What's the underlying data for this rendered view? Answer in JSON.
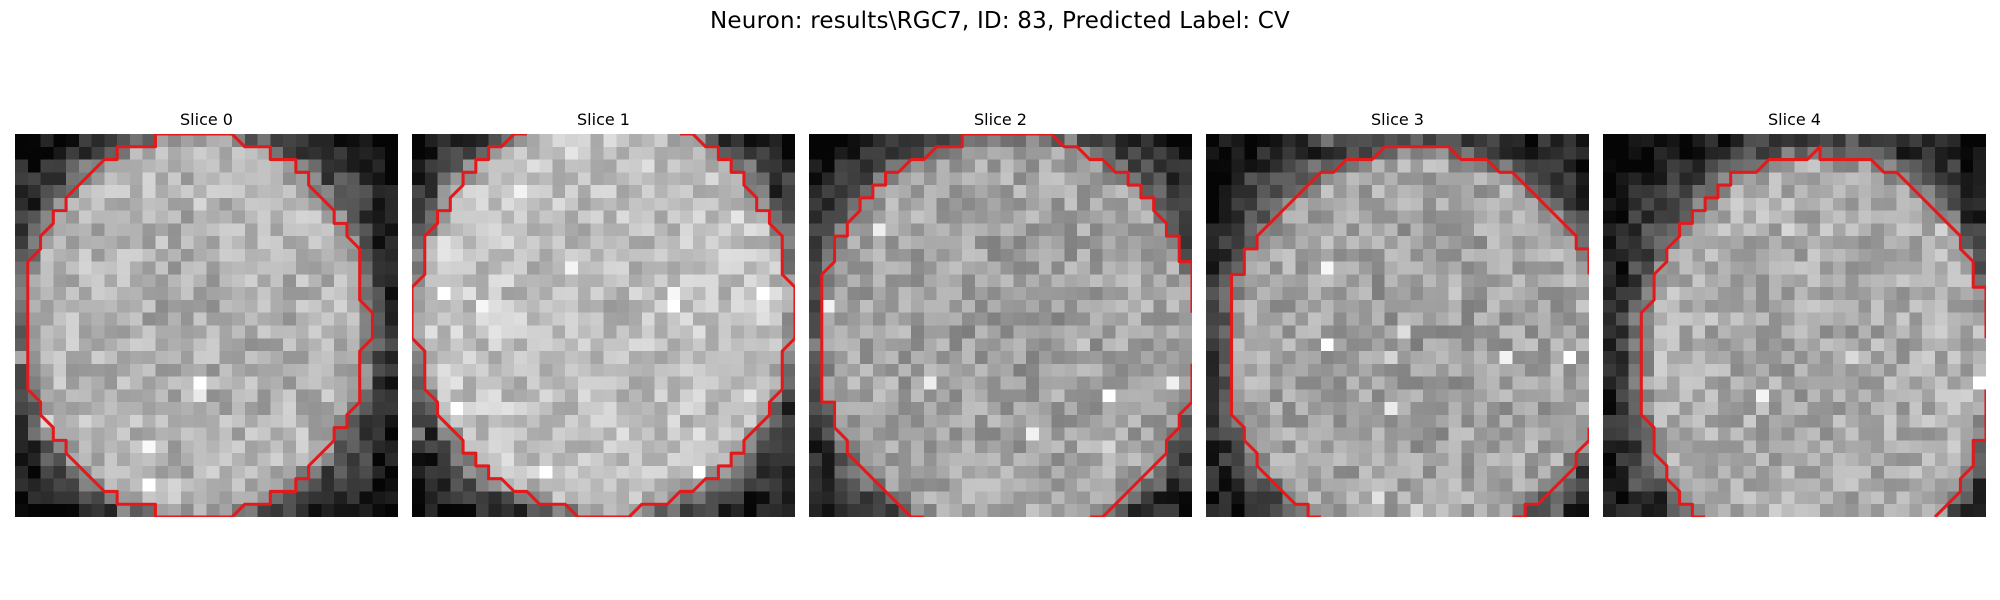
{
  "figure": {
    "title": "Neuron: results\\RGC7, ID: 83, Predicted Label: CV"
  },
  "grid_size": 30,
  "contour_color": "#e31a1c",
  "panels": [
    {
      "title": "Slice 0",
      "center": [
        0.47,
        0.5
      ],
      "radius": [
        0.45,
        0.5
      ],
      "brightness": 0.72,
      "dark_corners": [
        "bottom-left",
        "bottom-right"
      ],
      "seed": 11
    },
    {
      "title": "Slice 1",
      "center": [
        0.5,
        0.47
      ],
      "radius": [
        0.49,
        0.52
      ],
      "brightness": 0.78,
      "dark_corners": [
        "top-left",
        "bottom-left",
        "bottom-right"
      ],
      "seed": 23
    },
    {
      "title": "Slice 2",
      "center": [
        0.52,
        0.53
      ],
      "radius": [
        0.5,
        0.53
      ],
      "brightness": 0.66,
      "dark_corners": [
        "top-left",
        "bottom-left",
        "bottom-right",
        "top-right"
      ],
      "seed": 37
    },
    {
      "title": "Slice 3",
      "center": [
        0.55,
        0.56
      ],
      "radius": [
        0.5,
        0.52
      ],
      "brightness": 0.66,
      "dark_corners": [
        "top-left",
        "bottom-left",
        "top-right"
      ],
      "seed": 41
    },
    {
      "title": "Slice 4",
      "center": [
        0.56,
        0.6
      ],
      "radius": [
        0.46,
        0.55
      ],
      "brightness": 0.7,
      "dark_corners": [
        "top-left",
        "bottom-left",
        "top"
      ],
      "seed": 59
    }
  ]
}
